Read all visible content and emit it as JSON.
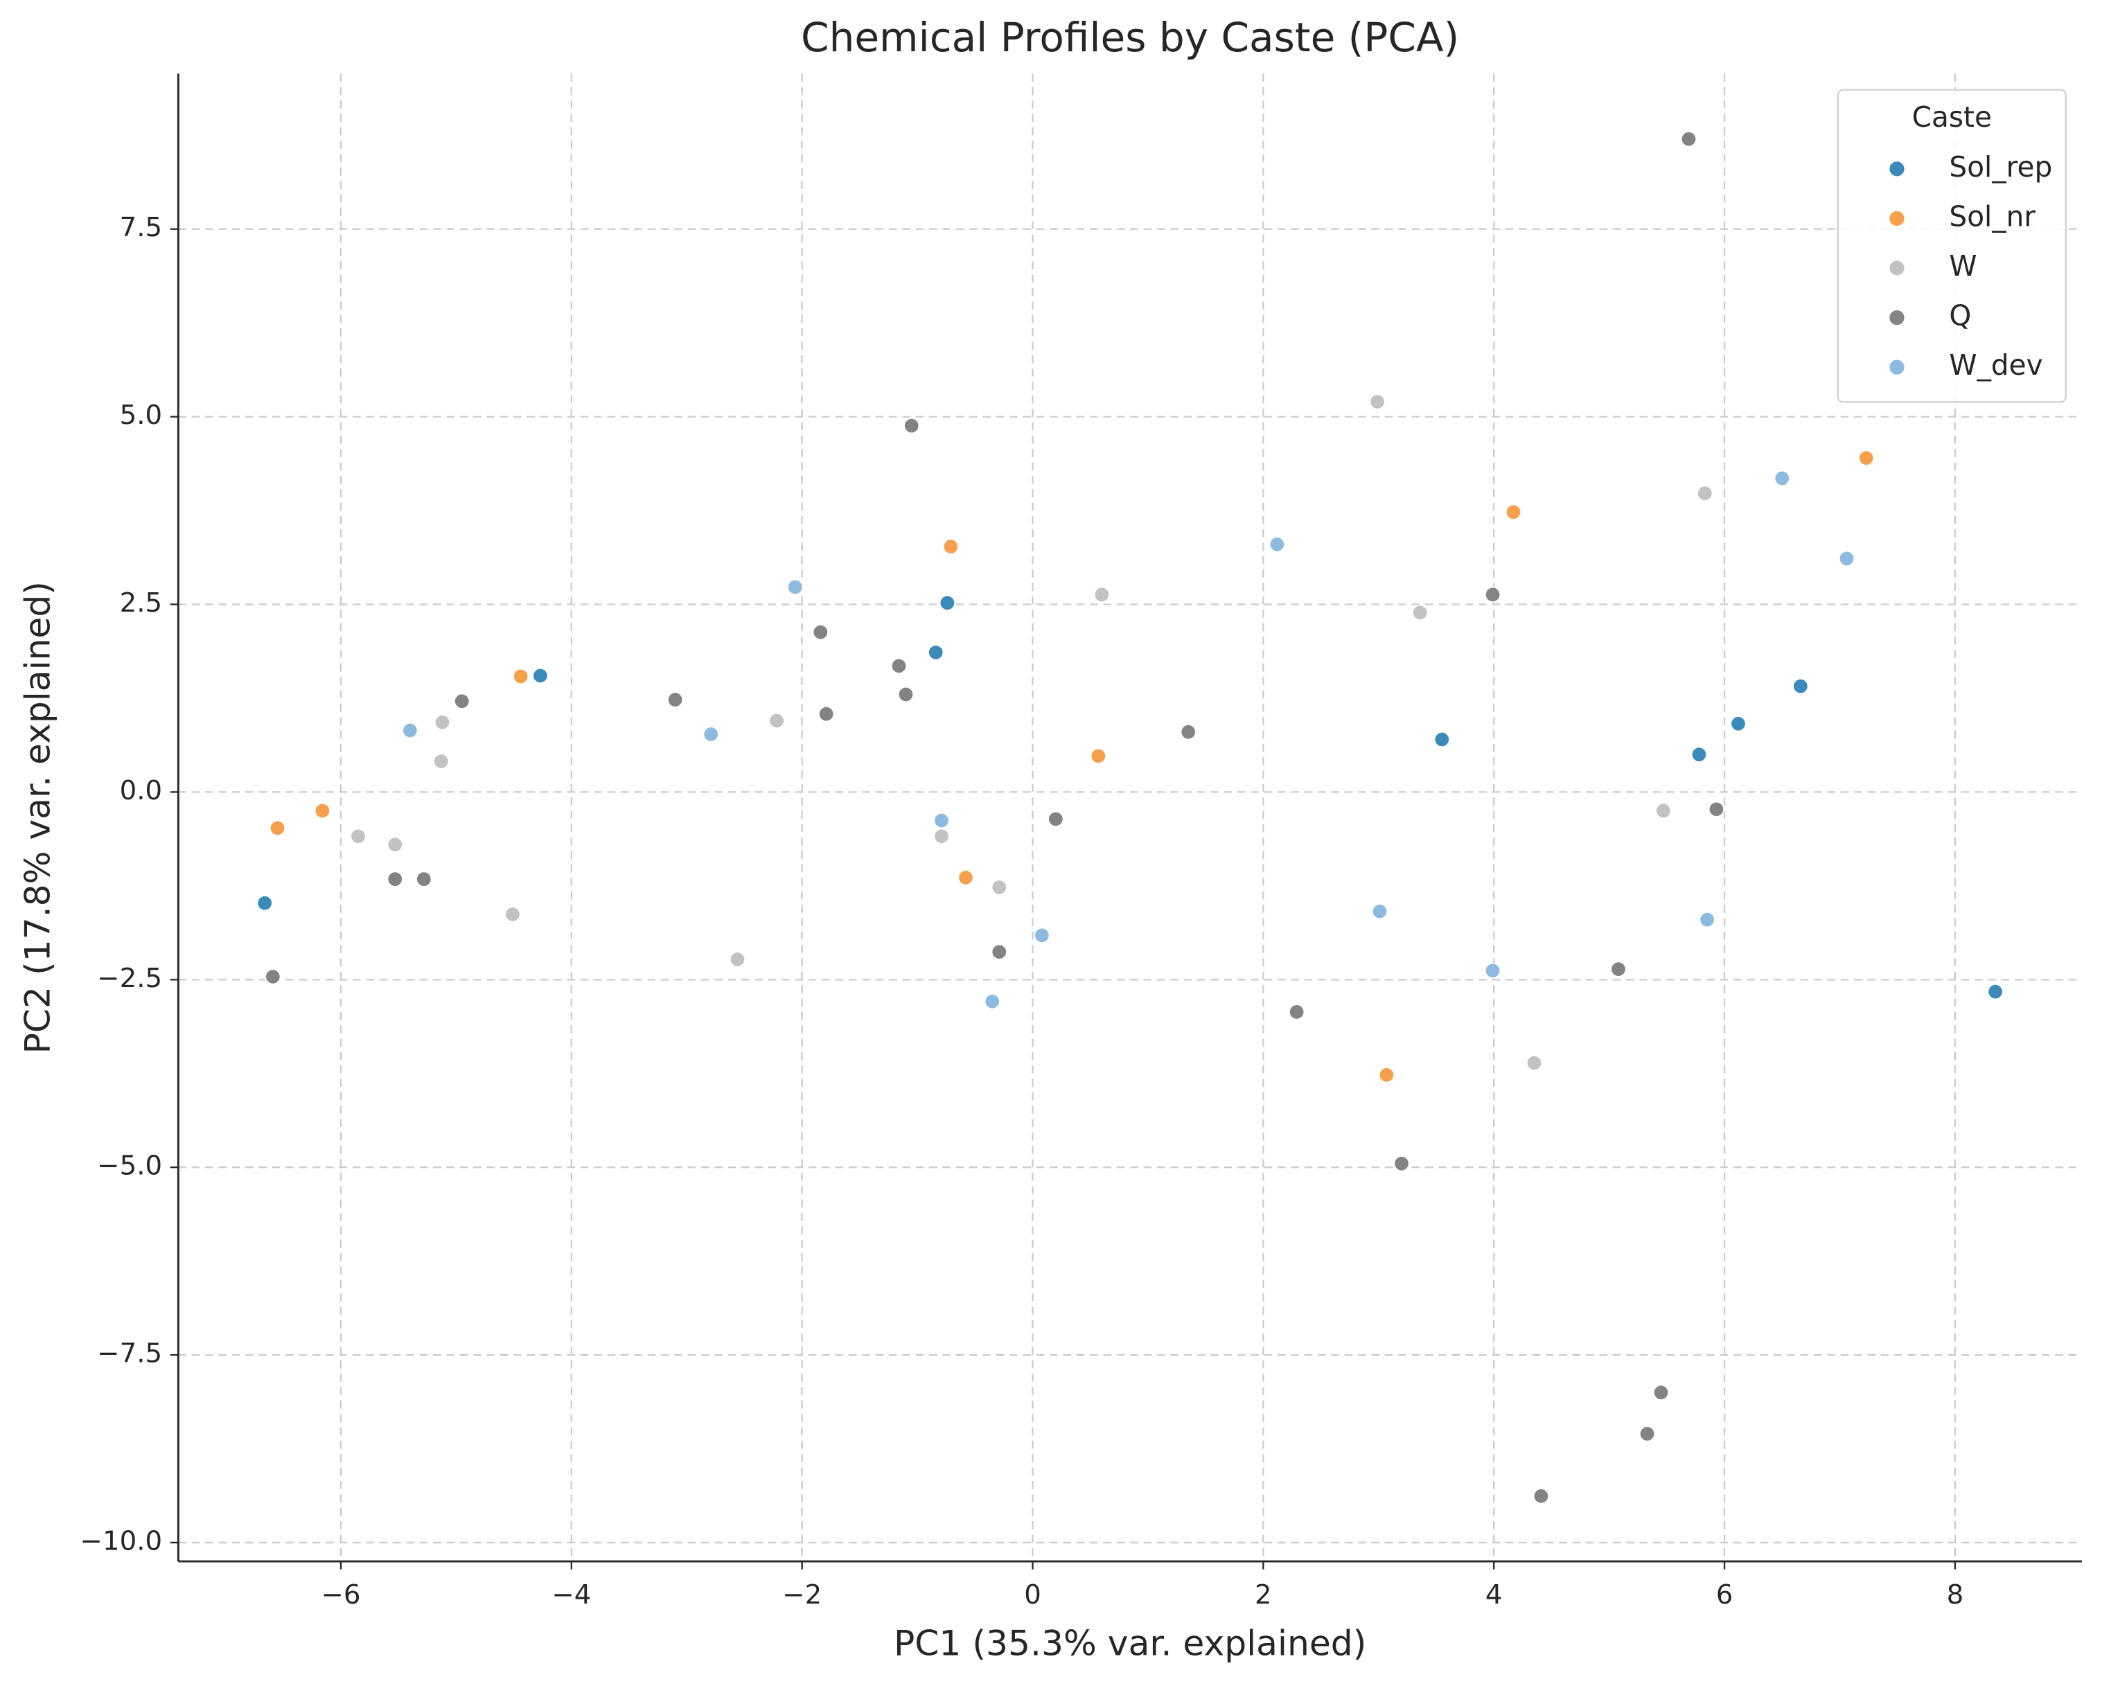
{
  "chart_data": {
    "type": "scatter",
    "title": "Chemical Profiles by Caste (PCA)",
    "x_label": "PC1 (35.3% var. explained)",
    "y_label": "PC2 (17.8% var. explained)",
    "legend_title": "Caste",
    "legend": "upper right",
    "grid": true,
    "xlim": [
      -7.41,
      9.1
    ],
    "ylim": [
      -10.25,
      9.57
    ],
    "xticks": [
      {
        "value": -6,
        "label": "−6"
      },
      {
        "value": -4,
        "label": "−4"
      },
      {
        "value": -2,
        "label": "−2"
      },
      0,
      2,
      4,
      6,
      8
    ],
    "yticks": [
      {
        "value": -10,
        "label": "−10.0"
      },
      {
        "value": -7.5,
        "label": "−7.5"
      },
      {
        "value": -5,
        "label": "−5.0"
      },
      {
        "value": -2.5,
        "label": "−2.5"
      },
      {
        "value": 0,
        "label": "0.0"
      },
      2.5,
      {
        "value": 5,
        "label": "5.0"
      },
      7.5
    ],
    "series": [
      {
        "name": "Sol_rep",
        "color": "#3b8bba",
        "x": [
          -6.66,
          -4.27,
          -0.74,
          -0.84,
          3.55,
          5.78,
          6.12,
          6.66,
          8.35
        ],
        "y": [
          -1.48,
          1.55,
          2.52,
          1.86,
          0.7,
          0.5,
          0.91,
          1.41,
          -2.66
        ]
      },
      {
        "name": "Sol_nr",
        "color": "#f7a04c",
        "x": [
          -6.55,
          -6.16,
          -4.44,
          -0.71,
          -0.58,
          0.57,
          4.17,
          3.07,
          7.23
        ],
        "y": [
          -0.48,
          -0.25,
          1.54,
          3.27,
          -1.14,
          0.48,
          3.73,
          -3.77,
          4.45
        ]
      },
      {
        "name": "W",
        "color": "#c2c2c2",
        "x": [
          -5.85,
          -5.53,
          -5.12,
          -5.13,
          -4.51,
          -2.56,
          -2.22,
          -0.79,
          -0.29,
          0.6,
          2.99,
          3.36,
          4.35,
          5.47,
          5.83
        ],
        "y": [
          -0.59,
          -0.7,
          0.93,
          0.41,
          -1.63,
          -2.23,
          0.95,
          -0.59,
          -1.27,
          2.63,
          5.2,
          2.39,
          -3.61,
          -0.25,
          3.98
        ]
      },
      {
        "name": "Q",
        "color": "#838383",
        "x": [
          -6.59,
          -5.53,
          -5.28,
          -4.95,
          -3.1,
          -1.84,
          -1.79,
          -1.16,
          -1.1,
          -1.05,
          -0.29,
          0.2,
          1.35,
          2.29,
          3.2,
          3.99,
          4.41,
          5.08,
          5.33,
          5.45,
          5.69,
          5.93
        ],
        "y": [
          -2.46,
          -1.16,
          -1.16,
          1.21,
          1.23,
          2.13,
          1.04,
          1.68,
          1.3,
          4.88,
          -2.13,
          -0.36,
          0.8,
          -2.93,
          -4.95,
          2.63,
          -9.38,
          -2.36,
          -8.55,
          -8.0,
          8.7,
          -0.23
        ]
      },
      {
        "name": "W_dev",
        "color": "#8dbbe0",
        "x": [
          -5.4,
          -2.79,
          -2.06,
          -0.79,
          -0.35,
          0.08,
          2.12,
          3.01,
          3.99,
          5.85,
          6.5,
          7.06
        ],
        "y": [
          0.82,
          0.77,
          2.73,
          -0.38,
          -2.79,
          -1.91,
          3.3,
          -1.59,
          -2.38,
          -1.7,
          4.18,
          3.11
        ]
      }
    ]
  }
}
